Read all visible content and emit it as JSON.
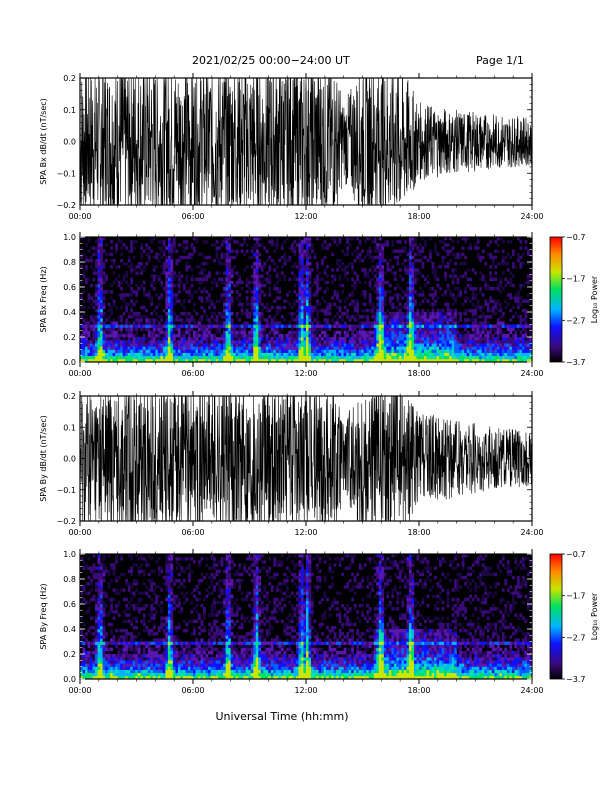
{
  "header": {
    "title": "2021/02/25  00:00−24:00 UT",
    "page": "Page 1/1"
  },
  "chart_data": [
    {
      "type": "line",
      "ylabel": "SPA Bx dB/dt (nT/sec)",
      "ylim": [
        -0.2,
        0.2
      ],
      "yticks": [
        "0.2",
        "0.1",
        "0.0",
        "−0.1",
        "−0.2"
      ],
      "xlim": [
        "00:00",
        "24:00"
      ],
      "xticks": [
        "00:00",
        "06:00",
        "12:00",
        "18:00",
        "24:00"
      ],
      "envelope_hours": [
        0,
        3,
        6,
        9,
        10.5,
        12,
        13.5,
        14,
        15,
        16,
        17,
        18,
        20,
        22,
        24
      ],
      "envelope_amplitude": [
        0.2,
        0.2,
        0.2,
        0.2,
        0.2,
        0.2,
        0.2,
        0.1,
        0.2,
        0.2,
        0.2,
        0.1,
        0.08,
        0.07,
        0.06
      ]
    },
    {
      "type": "heatmap",
      "ylabel": "SPA Bx Freq (Hz)",
      "ylim": [
        0.0,
        1.0
      ],
      "yticks": [
        "1.0",
        "0.8",
        "0.6",
        "0.4",
        "0.2",
        "0.0"
      ],
      "xlim": [
        "00:00",
        "24:00"
      ],
      "xticks": [
        "00:00",
        "06:00",
        "12:00",
        "18:00",
        "24:00"
      ],
      "colorbar": {
        "label": "Log₁₀ Power",
        "range": [
          -3.7,
          -0.7
        ],
        "ticks": [
          "−0.7",
          "−1.7",
          "−2.7",
          "−3.7"
        ]
      },
      "bright_events_hours": [
        1.0,
        4.7,
        7.8,
        9.3,
        11.7,
        12.0,
        15.9,
        17.5
      ]
    },
    {
      "type": "line",
      "ylabel": "SPA By dB/dt (nT/sec)",
      "ylim": [
        -0.2,
        0.2
      ],
      "yticks": [
        "0.2",
        "0.1",
        "0.0",
        "−0.1",
        "−0.2"
      ],
      "xlim": [
        "00:00",
        "24:00"
      ],
      "xticks": [
        "00:00",
        "06:00",
        "12:00",
        "18:00",
        "24:00"
      ],
      "envelope_hours": [
        0,
        3,
        6,
        9,
        10.5,
        12,
        13.5,
        14,
        15,
        16,
        17,
        18,
        20,
        22,
        24
      ],
      "envelope_amplitude": [
        0.2,
        0.2,
        0.2,
        0.2,
        0.2,
        0.2,
        0.2,
        0.1,
        0.2,
        0.2,
        0.2,
        0.12,
        0.1,
        0.08,
        0.07
      ]
    },
    {
      "type": "heatmap",
      "ylabel": "SPA By Freq (Hz)",
      "ylim": [
        0.0,
        1.0
      ],
      "yticks": [
        "1.0",
        "0.8",
        "0.6",
        "0.4",
        "0.2",
        "0.0"
      ],
      "xlim": [
        "00:00",
        "24:00"
      ],
      "xticks": [
        "00:00",
        "06:00",
        "12:00",
        "18:00",
        "24:00"
      ],
      "colorbar": {
        "label": "Log₁₀ Power",
        "range": [
          -3.7,
          -0.7
        ],
        "ticks": [
          "−0.7",
          "−1.7",
          "−2.7",
          "−3.7"
        ]
      },
      "bright_events_hours": [
        1.0,
        4.7,
        7.8,
        9.3,
        11.7,
        12.0,
        15.9,
        17.5
      ]
    }
  ],
  "xlabel": "Universal Time (hh:mm)"
}
